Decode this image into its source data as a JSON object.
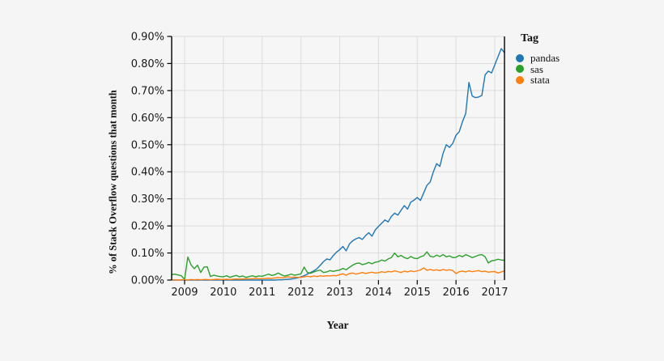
{
  "figure": {
    "background_color": "#f5f5f5",
    "plot_background_color": "#f6f6f6",
    "gridline_color": "#dcdcdc",
    "axis_line_color": "#000000",
    "tick_color": "#000000",
    "text_color": "#1a1a1a"
  },
  "chart_data": {
    "type": "line",
    "title": "",
    "xlabel": "Year",
    "ylabel": "% of Stack Overflow questions that month",
    "grid": true,
    "legend": {
      "title": "Tag",
      "position": "right",
      "entries": [
        "pandas",
        "sas",
        "stata"
      ]
    },
    "x_unit": "month",
    "x_start": {
      "year": 2008,
      "month": 9
    },
    "x_end": {
      "year": 2017,
      "month": 4
    },
    "xlim": [
      2008.6667,
      2017.25
    ],
    "ylim": [
      0,
      0.9
    ],
    "x_ticks": [
      2009,
      2010,
      2011,
      2012,
      2013,
      2014,
      2015,
      2016,
      2017
    ],
    "x_tick_labels": [
      "2009",
      "2010",
      "2011",
      "2012",
      "2013",
      "2014",
      "2015",
      "2016",
      "2017"
    ],
    "y_ticks": [
      0,
      0.1,
      0.2,
      0.3,
      0.4,
      0.5,
      0.6,
      0.7,
      0.8,
      0.9
    ],
    "y_tick_labels": [
      "0.00%",
      "0.10%",
      "0.20%",
      "0.30%",
      "0.40%",
      "0.50%",
      "0.60%",
      "0.70%",
      "0.80%",
      "0.90%"
    ],
    "series": [
      {
        "name": "pandas",
        "color": "#1f77b4",
        "values": [
          0,
          0,
          0,
          0,
          0,
          0,
          0,
          0,
          0,
          0,
          0,
          0,
          0,
          0,
          0,
          0,
          0,
          0,
          0,
          0,
          0,
          0,
          0,
          0,
          0,
          0,
          0,
          0,
          0,
          0,
          0,
          0,
          0,
          0.001,
          0.001,
          0.002,
          0.003,
          0.004,
          0.006,
          0.008,
          0.012,
          0.016,
          0.022,
          0.028,
          0.034,
          0.042,
          0.055,
          0.068,
          0.078,
          0.075,
          0.09,
          0.103,
          0.112,
          0.124,
          0.108,
          0.133,
          0.145,
          0.152,
          0.157,
          0.15,
          0.164,
          0.175,
          0.162,
          0.185,
          0.198,
          0.21,
          0.222,
          0.215,
          0.235,
          0.247,
          0.24,
          0.258,
          0.275,
          0.262,
          0.288,
          0.295,
          0.305,
          0.294,
          0.322,
          0.35,
          0.362,
          0.4,
          0.43,
          0.42,
          0.468,
          0.5,
          0.49,
          0.505,
          0.535,
          0.548,
          0.585,
          0.615,
          0.73,
          0.68,
          0.674,
          0.676,
          0.682,
          0.758,
          0.772,
          0.765,
          0.795,
          0.825,
          0.855,
          0.84
        ]
      },
      {
        "name": "sas",
        "color": "#2ca02c",
        "values": [
          0.02,
          0.022,
          0.019,
          0.016,
          0.002,
          0.085,
          0.056,
          0.042,
          0.055,
          0.028,
          0.048,
          0.049,
          0.013,
          0.018,
          0.015,
          0.013,
          0.012,
          0.016,
          0.01,
          0.014,
          0.017,
          0.012,
          0.015,
          0.01,
          0.013,
          0.016,
          0.012,
          0.015,
          0.014,
          0.018,
          0.022,
          0.017,
          0.02,
          0.026,
          0.019,
          0.015,
          0.018,
          0.022,
          0.018,
          0.02,
          0.023,
          0.048,
          0.028,
          0.025,
          0.03,
          0.034,
          0.037,
          0.028,
          0.03,
          0.035,
          0.032,
          0.035,
          0.037,
          0.043,
          0.038,
          0.047,
          0.055,
          0.061,
          0.063,
          0.057,
          0.06,
          0.065,
          0.06,
          0.066,
          0.068,
          0.074,
          0.07,
          0.078,
          0.083,
          0.1,
          0.086,
          0.091,
          0.083,
          0.079,
          0.087,
          0.081,
          0.079,
          0.086,
          0.09,
          0.104,
          0.088,
          0.085,
          0.092,
          0.087,
          0.094,
          0.086,
          0.089,
          0.083,
          0.084,
          0.091,
          0.086,
          0.094,
          0.089,
          0.083,
          0.087,
          0.092,
          0.094,
          0.086,
          0.063,
          0.071,
          0.073,
          0.077,
          0.074,
          0.073
        ]
      },
      {
        "name": "stata",
        "color": "#ff7f0e",
        "values": [
          0.001,
          0.001,
          0,
          0.001,
          0.001,
          0,
          0.002,
          0.001,
          0.002,
          0.001,
          0.002,
          0.002,
          0.001,
          0.002,
          0.003,
          0.002,
          0.002,
          0.003,
          0.002,
          0.003,
          0.004,
          0.003,
          0.004,
          0.005,
          0.004,
          0.005,
          0.006,
          0.005,
          0.005,
          0.006,
          0.007,
          0.006,
          0.008,
          0.009,
          0.008,
          0.01,
          0.012,
          0.01,
          0.011,
          0.01,
          0.01,
          0.012,
          0.014,
          0.012,
          0.015,
          0.013,
          0.016,
          0.014,
          0.016,
          0.015,
          0.017,
          0.016,
          0.02,
          0.023,
          0.018,
          0.024,
          0.026,
          0.022,
          0.025,
          0.028,
          0.024,
          0.027,
          0.029,
          0.026,
          0.027,
          0.031,
          0.028,
          0.032,
          0.03,
          0.034,
          0.031,
          0.028,
          0.033,
          0.03,
          0.034,
          0.031,
          0.034,
          0.037,
          0.045,
          0.036,
          0.039,
          0.036,
          0.038,
          0.035,
          0.039,
          0.036,
          0.038,
          0.035,
          0.024,
          0.031,
          0.033,
          0.03,
          0.034,
          0.031,
          0.033,
          0.035,
          0.031,
          0.033,
          0.029,
          0.031,
          0.031,
          0.026,
          0.03,
          0.034
        ]
      }
    ]
  }
}
